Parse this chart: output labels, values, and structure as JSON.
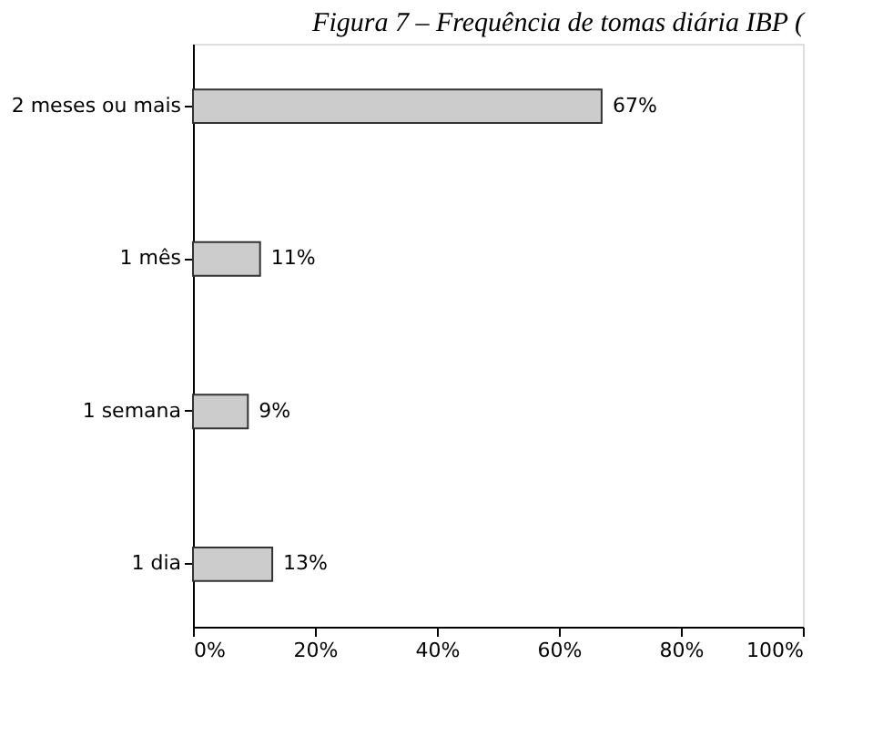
{
  "chart_data": {
    "type": "bar",
    "orientation": "horizontal",
    "title": "Figura 7 – Frequência de tomas diária IBP (",
    "categories": [
      "2 meses ou mais",
      "1 mês",
      "1 semana",
      "1 dia"
    ],
    "values": [
      67,
      11,
      9,
      13
    ],
    "color": "#cccccc",
    "value_labels": [
      "67%",
      "11%",
      "9%",
      "13%"
    ],
    "xlim": [
      0,
      100
    ],
    "xticks": [
      {
        "value": 0,
        "label": "0%"
      },
      {
        "value": 20,
        "label": "20%"
      },
      {
        "value": 40,
        "label": "40%"
      },
      {
        "value": 60,
        "label": "60%"
      },
      {
        "value": 80,
        "label": "80%"
      },
      {
        "value": 100,
        "label": "100%"
      }
    ],
    "grid": false
  }
}
